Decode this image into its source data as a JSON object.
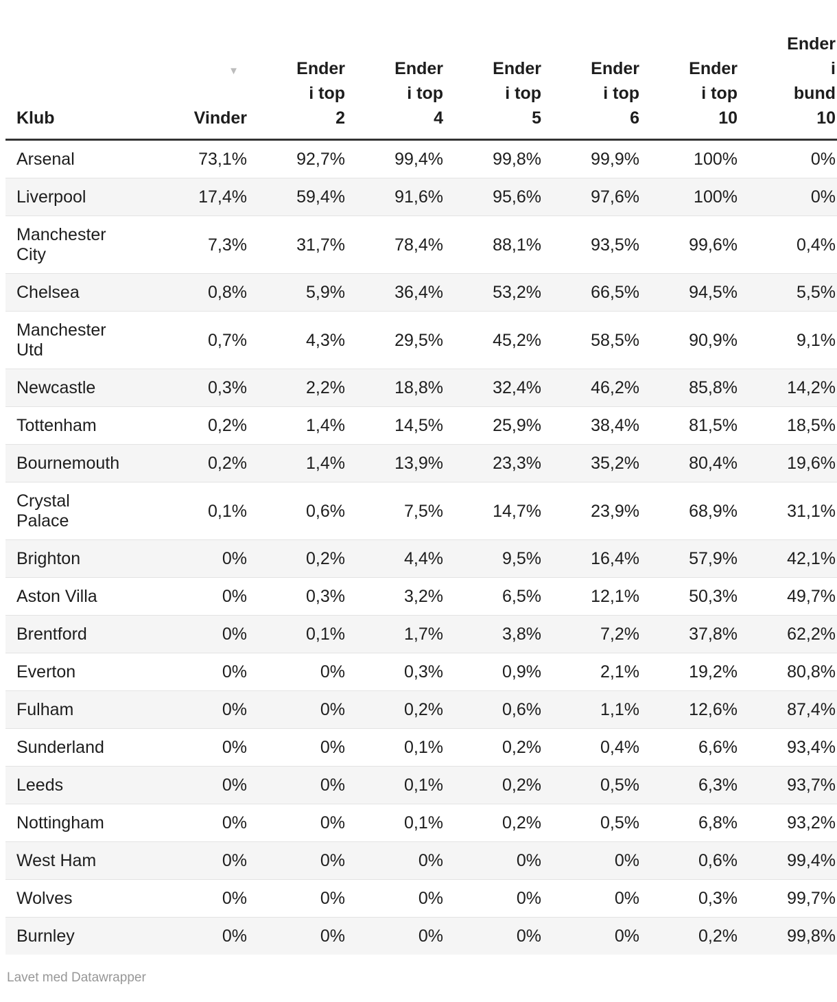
{
  "header": {
    "sort_icon": "▼"
  },
  "table": {
    "columns": [
      {
        "key": "klub",
        "label": "Klub"
      },
      {
        "key": "vinder",
        "label": "Vinder",
        "sorted": "desc"
      },
      {
        "key": "top2",
        "label": "Ender\ni top\n2"
      },
      {
        "key": "top4",
        "label": "Ender\ni top\n4"
      },
      {
        "key": "top5",
        "label": "Ender\ni top\n5"
      },
      {
        "key": "top6",
        "label": "Ender\ni top\n6"
      },
      {
        "key": "top10",
        "label": "Ender\ni top\n10"
      },
      {
        "key": "bund10",
        "label": "Ender\ni\nbund\n10"
      }
    ],
    "rows": [
      {
        "klub": "Arsenal",
        "vinder": "73,1%",
        "top2": "92,7%",
        "top4": "99,4%",
        "top5": "99,8%",
        "top6": "99,9%",
        "top10": "100%",
        "bund10": "0%"
      },
      {
        "klub": "Liverpool",
        "vinder": "17,4%",
        "top2": "59,4%",
        "top4": "91,6%",
        "top5": "95,6%",
        "top6": "97,6%",
        "top10": "100%",
        "bund10": "0%"
      },
      {
        "klub": "Manchester\nCity",
        "vinder": "7,3%",
        "top2": "31,7%",
        "top4": "78,4%",
        "top5": "88,1%",
        "top6": "93,5%",
        "top10": "99,6%",
        "bund10": "0,4%"
      },
      {
        "klub": "Chelsea",
        "vinder": "0,8%",
        "top2": "5,9%",
        "top4": "36,4%",
        "top5": "53,2%",
        "top6": "66,5%",
        "top10": "94,5%",
        "bund10": "5,5%"
      },
      {
        "klub": "Manchester\nUtd",
        "vinder": "0,7%",
        "top2": "4,3%",
        "top4": "29,5%",
        "top5": "45,2%",
        "top6": "58,5%",
        "top10": "90,9%",
        "bund10": "9,1%"
      },
      {
        "klub": "Newcastle",
        "vinder": "0,3%",
        "top2": "2,2%",
        "top4": "18,8%",
        "top5": "32,4%",
        "top6": "46,2%",
        "top10": "85,8%",
        "bund10": "14,2%"
      },
      {
        "klub": "Tottenham",
        "vinder": "0,2%",
        "top2": "1,4%",
        "top4": "14,5%",
        "top5": "25,9%",
        "top6": "38,4%",
        "top10": "81,5%",
        "bund10": "18,5%"
      },
      {
        "klub": "Bournemouth",
        "vinder": "0,2%",
        "top2": "1,4%",
        "top4": "13,9%",
        "top5": "23,3%",
        "top6": "35,2%",
        "top10": "80,4%",
        "bund10": "19,6%"
      },
      {
        "klub": "Crystal\nPalace",
        "vinder": "0,1%",
        "top2": "0,6%",
        "top4": "7,5%",
        "top5": "14,7%",
        "top6": "23,9%",
        "top10": "68,9%",
        "bund10": "31,1%"
      },
      {
        "klub": "Brighton",
        "vinder": "0%",
        "top2": "0,2%",
        "top4": "4,4%",
        "top5": "9,5%",
        "top6": "16,4%",
        "top10": "57,9%",
        "bund10": "42,1%"
      },
      {
        "klub": "Aston Villa",
        "vinder": "0%",
        "top2": "0,3%",
        "top4": "3,2%",
        "top5": "6,5%",
        "top6": "12,1%",
        "top10": "50,3%",
        "bund10": "49,7%"
      },
      {
        "klub": "Brentford",
        "vinder": "0%",
        "top2": "0,1%",
        "top4": "1,7%",
        "top5": "3,8%",
        "top6": "7,2%",
        "top10": "37,8%",
        "bund10": "62,2%"
      },
      {
        "klub": "Everton",
        "vinder": "0%",
        "top2": "0%",
        "top4": "0,3%",
        "top5": "0,9%",
        "top6": "2,1%",
        "top10": "19,2%",
        "bund10": "80,8%"
      },
      {
        "klub": "Fulham",
        "vinder": "0%",
        "top2": "0%",
        "top4": "0,2%",
        "top5": "0,6%",
        "top6": "1,1%",
        "top10": "12,6%",
        "bund10": "87,4%"
      },
      {
        "klub": "Sunderland",
        "vinder": "0%",
        "top2": "0%",
        "top4": "0,1%",
        "top5": "0,2%",
        "top6": "0,4%",
        "top10": "6,6%",
        "bund10": "93,4%"
      },
      {
        "klub": "Leeds",
        "vinder": "0%",
        "top2": "0%",
        "top4": "0,1%",
        "top5": "0,2%",
        "top6": "0,5%",
        "top10": "6,3%",
        "bund10": "93,7%"
      },
      {
        "klub": "Nottingham",
        "vinder": "0%",
        "top2": "0%",
        "top4": "0,1%",
        "top5": "0,2%",
        "top6": "0,5%",
        "top10": "6,8%",
        "bund10": "93,2%"
      },
      {
        "klub": "West Ham",
        "vinder": "0%",
        "top2": "0%",
        "top4": "0%",
        "top5": "0%",
        "top6": "0%",
        "top10": "0,6%",
        "bund10": "99,4%"
      },
      {
        "klub": "Wolves",
        "vinder": "0%",
        "top2": "0%",
        "top4": "0%",
        "top5": "0%",
        "top6": "0%",
        "top10": "0,3%",
        "bund10": "99,7%"
      },
      {
        "klub": "Burnley",
        "vinder": "0%",
        "top2": "0%",
        "top4": "0%",
        "top5": "0%",
        "top6": "0%",
        "top10": "0,2%",
        "bund10": "99,8%"
      }
    ]
  },
  "chart_data": {
    "type": "table",
    "title": "",
    "columns": [
      "Klub",
      "Vinder",
      "Ender i top 2",
      "Ender i top 4",
      "Ender i top 5",
      "Ender i top 6",
      "Ender i top 10",
      "Ender i bund 10"
    ],
    "unit": "percent",
    "sorted_by": "Vinder",
    "sort_direction": "desc",
    "rows": [
      [
        "Arsenal",
        73.1,
        92.7,
        99.4,
        99.8,
        99.9,
        100,
        0
      ],
      [
        "Liverpool",
        17.4,
        59.4,
        91.6,
        95.6,
        97.6,
        100,
        0
      ],
      [
        "Manchester City",
        7.3,
        31.7,
        78.4,
        88.1,
        93.5,
        99.6,
        0.4
      ],
      [
        "Chelsea",
        0.8,
        5.9,
        36.4,
        53.2,
        66.5,
        94.5,
        5.5
      ],
      [
        "Manchester Utd",
        0.7,
        4.3,
        29.5,
        45.2,
        58.5,
        90.9,
        9.1
      ],
      [
        "Newcastle",
        0.3,
        2.2,
        18.8,
        32.4,
        46.2,
        85.8,
        14.2
      ],
      [
        "Tottenham",
        0.2,
        1.4,
        14.5,
        25.9,
        38.4,
        81.5,
        18.5
      ],
      [
        "Bournemouth",
        0.2,
        1.4,
        13.9,
        23.3,
        35.2,
        80.4,
        19.6
      ],
      [
        "Crystal Palace",
        0.1,
        0.6,
        7.5,
        14.7,
        23.9,
        68.9,
        31.1
      ],
      [
        "Brighton",
        0,
        0.2,
        4.4,
        9.5,
        16.4,
        57.9,
        42.1
      ],
      [
        "Aston Villa",
        0,
        0.3,
        3.2,
        6.5,
        12.1,
        50.3,
        49.7
      ],
      [
        "Brentford",
        0,
        0.1,
        1.7,
        3.8,
        7.2,
        37.8,
        62.2
      ],
      [
        "Everton",
        0,
        0,
        0.3,
        0.9,
        2.1,
        19.2,
        80.8
      ],
      [
        "Fulham",
        0,
        0,
        0.2,
        0.6,
        1.1,
        12.6,
        87.4
      ],
      [
        "Sunderland",
        0,
        0,
        0.1,
        0.2,
        0.4,
        6.6,
        93.4
      ],
      [
        "Leeds",
        0,
        0,
        0.1,
        0.2,
        0.5,
        6.3,
        93.7
      ],
      [
        "Nottingham",
        0,
        0,
        0.1,
        0.2,
        0.5,
        6.8,
        93.2
      ],
      [
        "West Ham",
        0,
        0,
        0,
        0,
        0,
        0.6,
        99.4
      ],
      [
        "Wolves",
        0,
        0,
        0,
        0,
        0,
        0.3,
        99.7
      ],
      [
        "Burnley",
        0,
        0,
        0,
        0,
        0,
        0.2,
        99.8
      ]
    ]
  },
  "footer": {
    "credit": "Lavet med Datawrapper"
  },
  "colors": {
    "stripe": "#f5f5f5",
    "row_divider": "#e3e3e3",
    "header_rule": "#333333",
    "text": "#1d1d1d",
    "sort_icon": "#bcbcbc",
    "footer_text": "#979797",
    "background": "#ffffff"
  }
}
